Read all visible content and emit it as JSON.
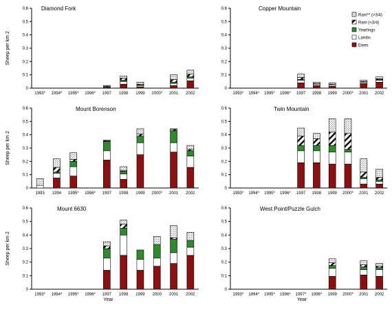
{
  "colors": {
    "ewes": "#8B1010",
    "lambs": "#ffffff",
    "yearlings": "#2E8B2E",
    "ram_lt": "hatch-diagonal",
    "ram_gt": "dots"
  },
  "chart_data": [
    {
      "type": "bar",
      "stacked": true,
      "title": "Diamond Fork",
      "ylabel": "Sheep per km 2",
      "xlabel": "",
      "ylim": [
        0,
        0.6
      ],
      "yticks": [
        "0",
        "0.1",
        "0.2",
        "0.3",
        "0.4",
        "0.5",
        "0.6"
      ],
      "categories": [
        "1993*",
        "1994*",
        "1995*",
        "1996*",
        "1997",
        "1998",
        "1999",
        "2000*",
        "2001",
        "2002"
      ],
      "legend_position": "none",
      "series": [
        {
          "name": "Ewes",
          "values": [
            0,
            0,
            0,
            0,
            0.005,
            0.03,
            0.01,
            0,
            0.02,
            0.055
          ]
        },
        {
          "name": "Lambs",
          "values": [
            0,
            0,
            0,
            0,
            0.005,
            0.02,
            0.01,
            0,
            0.015,
            0.02
          ]
        },
        {
          "name": "Yearlings",
          "values": [
            0,
            0,
            0,
            0,
            0,
            0.01,
            0.005,
            0,
            0.01,
            0.01
          ]
        },
        {
          "name": "Ram (<3/4)",
          "values": [
            0,
            0,
            0,
            0,
            0.005,
            0.015,
            0.005,
            0,
            0.02,
            0.02
          ]
        },
        {
          "name": "Ram (>3/4)",
          "values": [
            0,
            0,
            0,
            0,
            0.005,
            0.015,
            0.015,
            0,
            0.035,
            0.03
          ]
        }
      ]
    },
    {
      "type": "bar",
      "stacked": true,
      "title": "Copper Mountain",
      "ylabel": "",
      "xlabel": "",
      "ylim": [
        0,
        0.6
      ],
      "yticks": [
        "0",
        "0.1",
        "0.2",
        "0.3",
        "0.4",
        "0.5",
        "0.6"
      ],
      "categories": [
        "1993*",
        "1994*",
        "1995*",
        "1996*",
        "1997",
        "1998",
        "1999",
        "2000*",
        "2001",
        "2002"
      ],
      "legend_position": "top-right",
      "legend": [
        "Ram** (>3/4)",
        "Ram (<3/4)",
        "Yearlings",
        "Lambs",
        "Ewes"
      ],
      "series": [
        {
          "name": "Ewes",
          "values": [
            0,
            0,
            0,
            0,
            0.04,
            0.02,
            0.015,
            0,
            0.035,
            0.045
          ]
        },
        {
          "name": "Lambs",
          "values": [
            0,
            0,
            0,
            0,
            0.02,
            0.01,
            0.01,
            0,
            0.01,
            0.015
          ]
        },
        {
          "name": "Yearlings",
          "values": [
            0,
            0,
            0,
            0,
            0.005,
            0,
            0,
            0,
            0,
            0.005
          ]
        },
        {
          "name": "Ram (<3/4)",
          "values": [
            0,
            0,
            0,
            0,
            0.015,
            0.005,
            0.005,
            0,
            0.005,
            0.005
          ]
        },
        {
          "name": "Ram (>3/4)",
          "values": [
            0,
            0,
            0,
            0,
            0.025,
            0.01,
            0.01,
            0,
            0.01,
            0.015
          ]
        }
      ]
    },
    {
      "type": "bar",
      "stacked": true,
      "title": "Mount Borenson",
      "ylabel": "Sheep per km 2",
      "xlabel": "",
      "ylim": [
        0,
        0.6
      ],
      "yticks": [
        "0",
        "0.1",
        "0.2",
        "0.3",
        "0.4",
        "0.5",
        "0.6"
      ],
      "categories": [
        "1993",
        "1994",
        "1995*",
        "1996*",
        "1997",
        "1998",
        "1999",
        "2000*",
        "2001",
        "2002"
      ],
      "legend_position": "none",
      "series": [
        {
          "name": "Ewes",
          "values": [
            0,
            0.075,
            0.09,
            0,
            0.21,
            0.065,
            0.25,
            0,
            0.27,
            0.155
          ]
        },
        {
          "name": "Lambs",
          "values": [
            0.02,
            0.035,
            0.07,
            0,
            0.07,
            0.04,
            0.09,
            0,
            0.07,
            0.085
          ]
        },
        {
          "name": "Yearlings",
          "values": [
            0,
            0.01,
            0.04,
            0,
            0.07,
            0.02,
            0.05,
            0,
            0.09,
            0.04
          ]
        },
        {
          "name": "Ram (<3/4)",
          "values": [
            0,
            0.035,
            0.015,
            0,
            0.005,
            0.005,
            0.015,
            0,
            0.01,
            0.01
          ]
        },
        {
          "name": "Ram (>3/4)",
          "values": [
            0.05,
            0.065,
            0.05,
            0,
            0.005,
            0.03,
            0.04,
            0,
            0.005,
            0.03
          ]
        }
      ]
    },
    {
      "type": "bar",
      "stacked": true,
      "title": "Twin Mountain",
      "ylabel": "",
      "xlabel": "",
      "ylim": [
        0,
        0.6
      ],
      "yticks": [
        "0",
        "0.1",
        "0.2",
        "0.3",
        "0.4",
        "0.5",
        "0.6"
      ],
      "categories": [
        "1993*",
        "1994*",
        "1995*",
        "1996*",
        "1997",
        "1998",
        "1999",
        "2000*",
        "2001",
        "2002"
      ],
      "legend_position": "none",
      "series": [
        {
          "name": "Ewes",
          "values": [
            0,
            0,
            0,
            0,
            0.19,
            0.19,
            0.18,
            0.18,
            0.03,
            0.03
          ]
        },
        {
          "name": "Lambs",
          "values": [
            0,
            0,
            0,
            0,
            0.09,
            0.09,
            0.09,
            0.09,
            0.04,
            0.02
          ]
        },
        {
          "name": "Yearlings",
          "values": [
            0,
            0,
            0,
            0,
            0.04,
            0.04,
            0.05,
            0.02,
            0.01,
            0.01
          ]
        },
        {
          "name": "Ram (<3/4)",
          "values": [
            0,
            0,
            0,
            0,
            0.07,
            0.05,
            0.1,
            0.12,
            0.04,
            0.02
          ]
        },
        {
          "name": "Ram (>3/4)",
          "values": [
            0,
            0,
            0,
            0,
            0.06,
            0.04,
            0.1,
            0.11,
            0.1,
            0.06
          ]
        }
      ]
    },
    {
      "type": "bar",
      "stacked": true,
      "title": "Mount 6630",
      "ylabel": "Sheep per km 2",
      "xlabel": "Year",
      "ylim": [
        0,
        0.6
      ],
      "yticks": [
        "0",
        "0.1",
        "0.2",
        "0.3",
        "0.4",
        "0.5",
        "0.6"
      ],
      "categories": [
        "1993*",
        "1994*",
        "1995*",
        "1996*",
        "1997",
        "1998",
        "1999",
        "2000",
        "2001",
        "2002"
      ],
      "legend_position": "none",
      "series": [
        {
          "name": "Ewes",
          "values": [
            0,
            0,
            0,
            0,
            0.14,
            0.25,
            0.14,
            0.17,
            0.19,
            0.25
          ]
        },
        {
          "name": "Lambs",
          "values": [
            0,
            0,
            0,
            0,
            0.09,
            0.15,
            0.08,
            0.06,
            0.08,
            0.06
          ]
        },
        {
          "name": "Yearlings",
          "values": [
            0,
            0,
            0,
            0,
            0.07,
            0.05,
            0.07,
            0.1,
            0.1,
            0.05
          ]
        },
        {
          "name": "Ram (<3/4)",
          "values": [
            0,
            0,
            0,
            0,
            0.02,
            0.03,
            0,
            0,
            0.01,
            0
          ]
        },
        {
          "name": "Ram (>3/4)",
          "values": [
            0,
            0,
            0,
            0,
            0.03,
            0.03,
            0,
            0.06,
            0.09,
            0.06
          ]
        }
      ]
    },
    {
      "type": "bar",
      "stacked": true,
      "title": "West Point/Puzzle Gulch",
      "ylabel": "",
      "xlabel": "Year",
      "ylim": [
        0,
        0.6
      ],
      "yticks": [
        "0",
        "0.1",
        "0.2",
        "0.3",
        "0.4",
        "0.5",
        "0.6"
      ],
      "categories": [
        "1993*",
        "1994*",
        "1995*",
        "1996*",
        "1997*",
        "1998*",
        "1999",
        "2000*",
        "2001",
        "2002"
      ],
      "legend_position": "none",
      "series": [
        {
          "name": "Ewes",
          "values": [
            0,
            0,
            0,
            0,
            0,
            0,
            0.095,
            0,
            0.105,
            0.095
          ]
        },
        {
          "name": "Lambs",
          "values": [
            0,
            0,
            0,
            0,
            0,
            0,
            0.06,
            0,
            0.04,
            0.05
          ]
        },
        {
          "name": "Yearlings",
          "values": [
            0,
            0,
            0,
            0,
            0,
            0,
            0.02,
            0,
            0.02,
            0.015
          ]
        },
        {
          "name": "Ram (<3/4)",
          "values": [
            0,
            0,
            0,
            0,
            0,
            0,
            0.02,
            0,
            0.015,
            0.01
          ]
        },
        {
          "name": "Ram (>3/4)",
          "values": [
            0,
            0,
            0,
            0,
            0,
            0,
            0.03,
            0,
            0.03,
            0.02
          ]
        }
      ]
    }
  ]
}
